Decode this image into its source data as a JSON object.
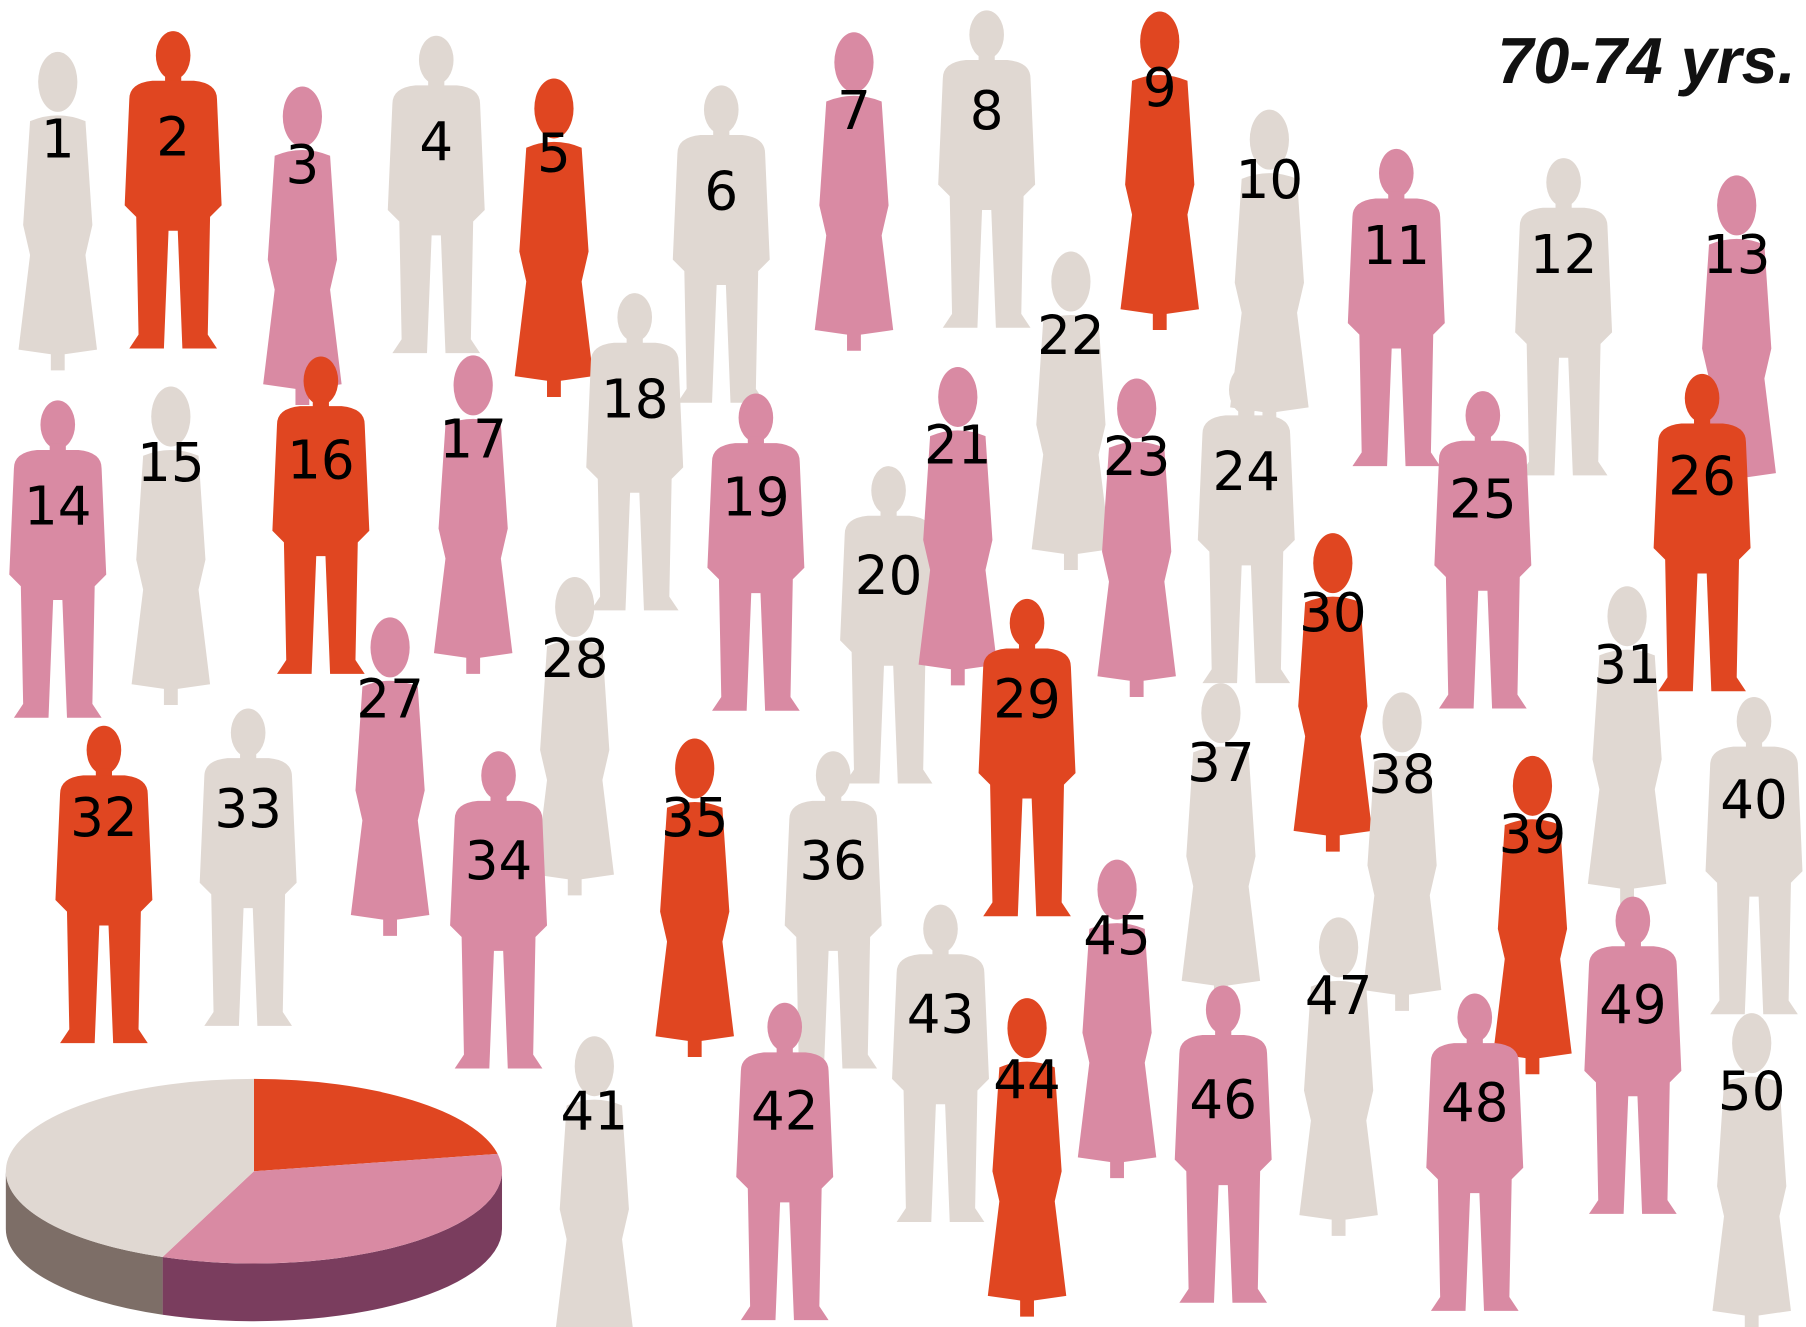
{
  "title": "70-74 yrs.",
  "groups": [
    {
      "color": "#e04621",
      "side": "#a8331a"
    },
    {
      "color": "#d98aa3",
      "side": "#7a3d5e"
    },
    {
      "color": "#e0d8d2",
      "side": "#7d6e67"
    }
  ],
  "pie": {
    "values": [
      22,
      34,
      44
    ]
  },
  "people": [
    {
      "label": "1",
      "group": 2,
      "shape": "f"
    },
    {
      "label": "2",
      "group": 0,
      "shape": "m"
    },
    {
      "label": "3",
      "group": 1,
      "shape": "f"
    },
    {
      "label": "4",
      "group": 2,
      "shape": "m"
    },
    {
      "label": "5",
      "group": 0,
      "shape": "f"
    },
    {
      "label": "6",
      "group": 2,
      "shape": "m"
    },
    {
      "label": "7",
      "group": 1,
      "shape": "f"
    },
    {
      "label": "8",
      "group": 2,
      "shape": "m"
    },
    {
      "label": "9",
      "group": 0,
      "shape": "f"
    },
    {
      "label": "10",
      "group": 2,
      "shape": "f"
    },
    {
      "label": "11",
      "group": 1,
      "shape": "m"
    },
    {
      "label": "12",
      "group": 2,
      "shape": "m"
    },
    {
      "label": "13",
      "group": 1,
      "shape": "f"
    },
    {
      "label": "14",
      "group": 1,
      "shape": "m"
    },
    {
      "label": "15",
      "group": 2,
      "shape": "f"
    },
    {
      "label": "16",
      "group": 0,
      "shape": "m"
    },
    {
      "label": "17",
      "group": 1,
      "shape": "f"
    },
    {
      "label": "18",
      "group": 2,
      "shape": "m"
    },
    {
      "label": "19",
      "group": 1,
      "shape": "m"
    },
    {
      "label": "20",
      "group": 2,
      "shape": "m"
    },
    {
      "label": "21",
      "group": 1,
      "shape": "f"
    },
    {
      "label": "22",
      "group": 2,
      "shape": "f"
    },
    {
      "label": "23",
      "group": 1,
      "shape": "f"
    },
    {
      "label": "24",
      "group": 2,
      "shape": "m"
    },
    {
      "label": "25",
      "group": 1,
      "shape": "m"
    },
    {
      "label": "26",
      "group": 0,
      "shape": "m"
    },
    {
      "label": "27",
      "group": 1,
      "shape": "f"
    },
    {
      "label": "28",
      "group": 2,
      "shape": "f"
    },
    {
      "label": "29",
      "group": 0,
      "shape": "m"
    },
    {
      "label": "30",
      "group": 0,
      "shape": "f"
    },
    {
      "label": "31",
      "group": 2,
      "shape": "f"
    },
    {
      "label": "32",
      "group": 0,
      "shape": "m"
    },
    {
      "label": "33",
      "group": 2,
      "shape": "m"
    },
    {
      "label": "34",
      "group": 1,
      "shape": "m"
    },
    {
      "label": "35",
      "group": 0,
      "shape": "f"
    },
    {
      "label": "36",
      "group": 2,
      "shape": "m"
    },
    {
      "label": "37",
      "group": 2,
      "shape": "f"
    },
    {
      "label": "38",
      "group": 2,
      "shape": "f"
    },
    {
      "label": "39",
      "group": 0,
      "shape": "f"
    },
    {
      "label": "40",
      "group": 2,
      "shape": "m"
    },
    {
      "label": "41",
      "group": 2,
      "shape": "f"
    },
    {
      "label": "42",
      "group": 1,
      "shape": "m"
    },
    {
      "label": "43",
      "group": 2,
      "shape": "m"
    },
    {
      "label": "44",
      "group": 0,
      "shape": "f"
    },
    {
      "label": "45",
      "group": 1,
      "shape": "f"
    },
    {
      "label": "46",
      "group": 1,
      "shape": "m"
    },
    {
      "label": "47",
      "group": 2,
      "shape": "f"
    },
    {
      "label": "48",
      "group": 1,
      "shape": "m"
    },
    {
      "label": "49",
      "group": 1,
      "shape": "m"
    },
    {
      "label": "50",
      "group": 2,
      "shape": "f"
    }
  ]
}
